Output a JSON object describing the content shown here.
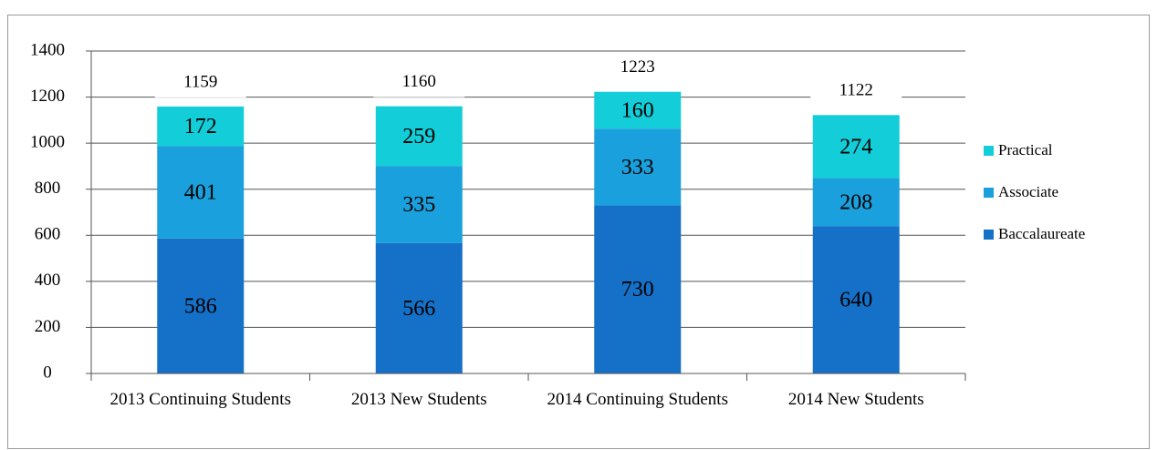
{
  "chart_data": {
    "type": "stacked_bar",
    "categories": [
      "2013 Continuing Students",
      "2013 New Students",
      "2014 Continuing Students",
      "2014 New Students"
    ],
    "series": [
      {
        "name": "Baccalaureate",
        "color": "#1570c8",
        "values": [
          586,
          566,
          730,
          640
        ]
      },
      {
        "name": "Associate",
        "color": "#1aa0dc",
        "values": [
          401,
          335,
          333,
          208
        ]
      },
      {
        "name": "Practical",
        "color": "#13cdd8",
        "values": [
          172,
          259,
          160,
          274
        ]
      }
    ],
    "totals": [
      1159,
      1160,
      1223,
      1122
    ],
    "ylim": [
      0,
      1400
    ],
    "yticks": [
      0,
      200,
      400,
      600,
      800,
      1000,
      1200,
      1400
    ],
    "grid": true,
    "legend": "right"
  }
}
